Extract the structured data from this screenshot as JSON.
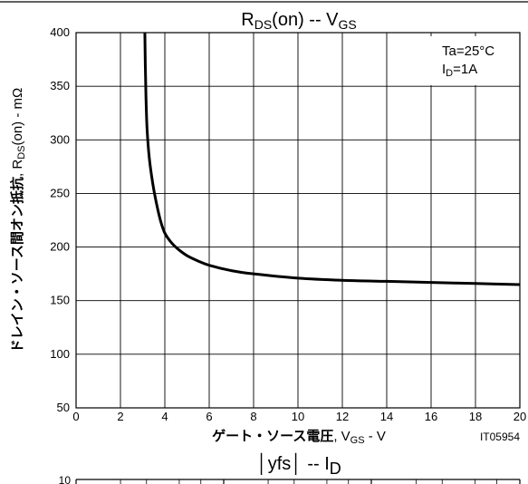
{
  "chart_data": {
    "type": "line",
    "title": "RDS(on) -- VGS",
    "title_parts": {
      "main1": "R",
      "sub1": "DS",
      "main2": "(on)  --  V",
      "sub2": "GS"
    },
    "conditions": [
      "Ta=25°C",
      "ID=1A"
    ],
    "conditions_parts": {
      "line1": "Ta=25°C",
      "line2_main": "I",
      "line2_sub": "D",
      "line2_rest": "=1A"
    },
    "xlabel": "ゲート・ソース電圧, VGS - V",
    "xlabel_parts": {
      "jp": "ゲート・ソース電圧",
      "rest1": ", V",
      "sub": "GS",
      "rest2": " - V"
    },
    "ylabel": "ドレイン・ソース間オン抵抗, RDS(on) - mΩ",
    "ylabel_parts": {
      "jp": "ドレイン・ソース間オン抵抗",
      "rest1": ", R",
      "sub": "DS",
      "rest2": "(on) - mΩ"
    },
    "xlim": [
      0,
      20
    ],
    "ylim": [
      50,
      400
    ],
    "x_ticks": [
      0,
      2,
      4,
      6,
      8,
      10,
      12,
      14,
      16,
      18,
      20
    ],
    "y_ticks": [
      50,
      100,
      150,
      200,
      250,
      300,
      350,
      400
    ],
    "grid": true,
    "figure_id": "IT05954",
    "series": [
      {
        "x": [
          3.1,
          3.12,
          3.15,
          3.2,
          3.3,
          3.45,
          3.6,
          3.8,
          4.0,
          4.3,
          4.6,
          5.0,
          5.5,
          6.0,
          7.0,
          8.0,
          10.0,
          12.0,
          14.0,
          16.0,
          18.0,
          20.0
        ],
        "values": [
          400,
          370,
          340,
          310,
          283,
          260,
          243,
          225,
          213,
          204,
          198,
          192,
          187,
          183,
          178,
          175,
          171,
          169,
          168,
          167,
          166,
          165
        ]
      }
    ],
    "next_chart": {
      "title": "|yfs| -- ID",
      "title_parts": {
        "main": "│yfs│  --  I",
        "sub": "D"
      },
      "y_ticks_visible": [
        "10"
      ]
    }
  }
}
